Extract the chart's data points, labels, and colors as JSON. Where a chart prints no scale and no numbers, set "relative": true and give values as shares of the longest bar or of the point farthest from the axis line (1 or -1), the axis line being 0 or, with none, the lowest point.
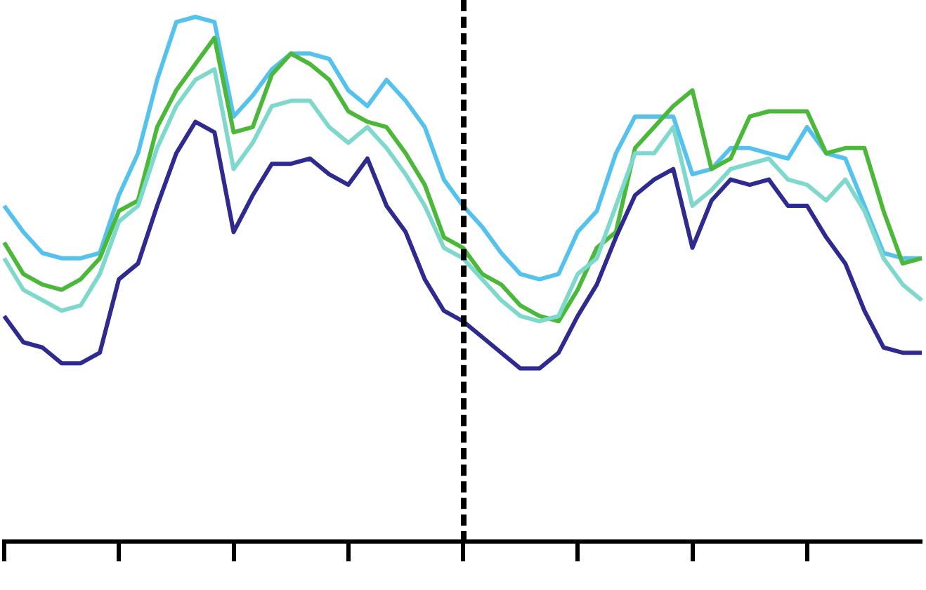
{
  "chart_data": {
    "type": "line",
    "relative": true,
    "grid": false,
    "legend": false,
    "marker": "none",
    "line_style": "solid",
    "categories": [
      null,
      null,
      null,
      null,
      null,
      null,
      null,
      null,
      null,
      null,
      null,
      null,
      null,
      null,
      null,
      null,
      null,
      null,
      null,
      null,
      null,
      null,
      null,
      null,
      null,
      null,
      null,
      null,
      null,
      null,
      null,
      null,
      null,
      null,
      null,
      null,
      null,
      null,
      null,
      null,
      null,
      null,
      null,
      null,
      null,
      null,
      null,
      null,
      null
    ],
    "series": [
      {
        "color": "#2e2a8f",
        "values": [
          0.43,
          0.38,
          0.37,
          0.34,
          0.34,
          0.36,
          0.5,
          0.53,
          0.64,
          0.74,
          0.8,
          0.78,
          0.59,
          0.66,
          0.72,
          0.72,
          0.73,
          0.7,
          0.68,
          0.73,
          0.64,
          0.59,
          0.5,
          0.44,
          0.42,
          0.39,
          0.36,
          0.33,
          0.33,
          0.36,
          0.43,
          0.49,
          0.58,
          0.66,
          0.69,
          0.71,
          0.56,
          0.65,
          0.69,
          0.68,
          0.69,
          0.64,
          0.64,
          0.58,
          0.53,
          0.44,
          0.37,
          0.36,
          0.36
        ]
      },
      {
        "color": "#7fd8cc",
        "values": [
          0.54,
          0.48,
          0.46,
          0.44,
          0.45,
          0.51,
          0.61,
          0.64,
          0.75,
          0.83,
          0.88,
          0.9,
          0.71,
          0.76,
          0.83,
          0.84,
          0.84,
          0.79,
          0.76,
          0.79,
          0.75,
          0.7,
          0.64,
          0.56,
          0.54,
          0.5,
          0.46,
          0.43,
          0.42,
          0.43,
          0.51,
          0.54,
          0.64,
          0.74,
          0.74,
          0.79,
          0.64,
          0.67,
          0.71,
          0.72,
          0.73,
          0.69,
          0.68,
          0.65,
          0.69,
          0.63,
          0.54,
          0.49,
          0.46
        ]
      },
      {
        "color": "#4cb83a",
        "values": [
          0.57,
          0.51,
          0.49,
          0.48,
          0.5,
          0.54,
          0.63,
          0.65,
          0.79,
          0.86,
          0.91,
          0.96,
          0.78,
          0.79,
          0.89,
          0.93,
          0.91,
          0.88,
          0.82,
          0.8,
          0.79,
          0.74,
          0.68,
          0.58,
          0.56,
          0.51,
          0.49,
          0.45,
          0.43,
          0.42,
          0.48,
          0.56,
          0.59,
          0.75,
          0.79,
          0.83,
          0.86,
          0.71,
          0.73,
          0.81,
          0.82,
          0.82,
          0.82,
          0.74,
          0.75,
          0.75,
          0.63,
          0.53,
          0.54
        ]
      },
      {
        "color": "#55c2ee",
        "values": [
          0.64,
          0.59,
          0.55,
          0.54,
          0.54,
          0.55,
          0.66,
          0.74,
          0.88,
          0.99,
          1.0,
          0.99,
          0.81,
          0.85,
          0.9,
          0.93,
          0.93,
          0.92,
          0.86,
          0.83,
          0.88,
          0.84,
          0.79,
          0.69,
          0.64,
          0.6,
          0.55,
          0.51,
          0.5,
          0.51,
          0.59,
          0.63,
          0.74,
          0.81,
          0.81,
          0.81,
          0.7,
          0.71,
          0.75,
          0.75,
          0.74,
          0.73,
          0.79,
          0.74,
          0.73,
          0.64,
          0.55,
          0.54,
          0.54
        ]
      }
    ]
  }
}
